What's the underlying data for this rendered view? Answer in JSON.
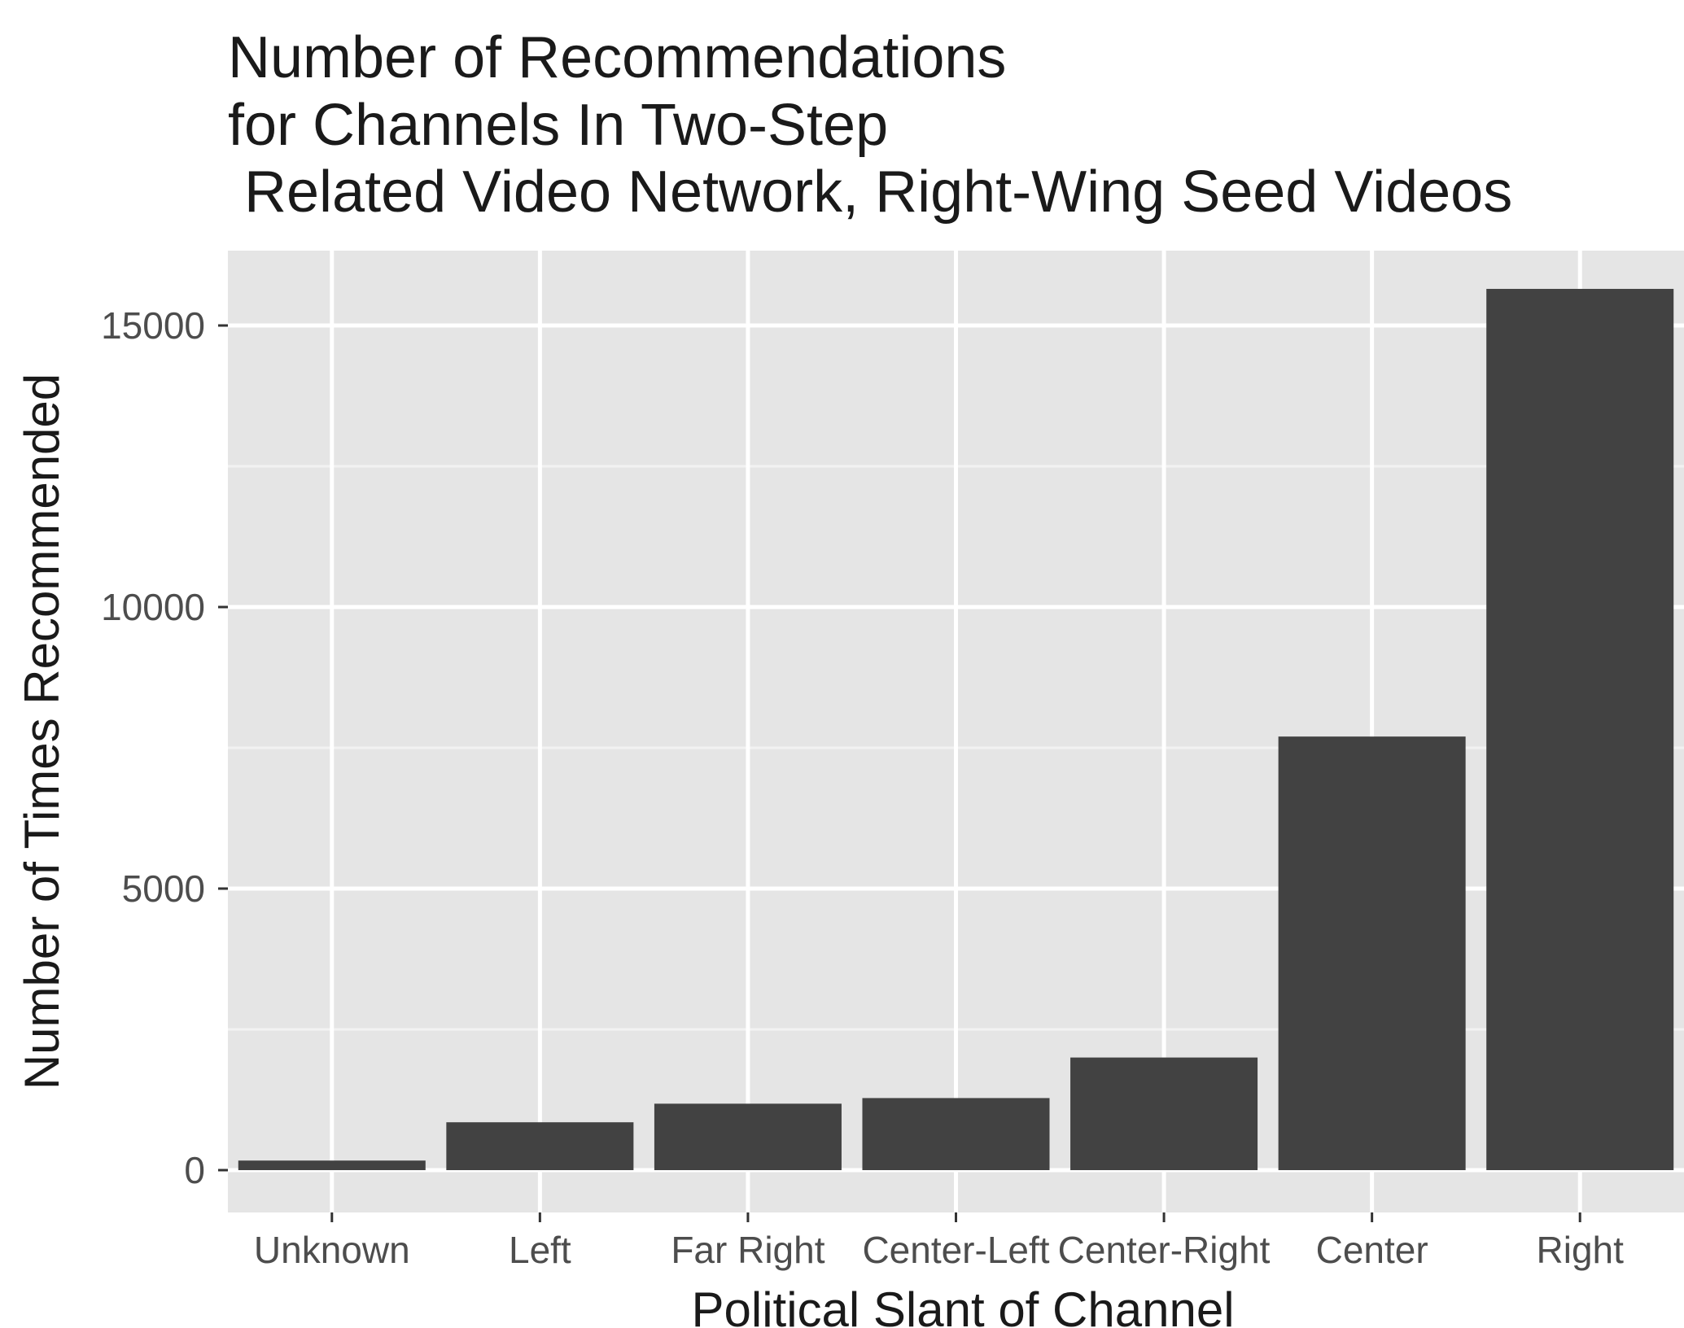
{
  "chart_data": {
    "type": "bar",
    "title_lines": [
      "Number of Recommendations",
      "for Channels In Two-Step",
      " Related Video Network, Right-Wing Seed Videos"
    ],
    "xlabel": "Political Slant of Channel",
    "ylabel": "Number of Times Recommended",
    "categories": [
      "Unknown",
      "Left",
      "Far Right",
      "Center-Left",
      "Center-Right",
      "Center",
      "Right"
    ],
    "values": [
      170,
      850,
      1180,
      1280,
      2000,
      7700,
      15650
    ],
    "ylim": [
      -750,
      16250
    ],
    "yticks": [
      0,
      5000,
      10000,
      15000
    ],
    "ytick_labels": [
      "0",
      "5000",
      "10000",
      "15000"
    ],
    "grid": true,
    "colors": {
      "bar": "#424242",
      "panel": "#e5e5e5",
      "grid_major": "#ffffff",
      "grid_minor": "#f2f2f2",
      "ticks": "#333333"
    }
  }
}
